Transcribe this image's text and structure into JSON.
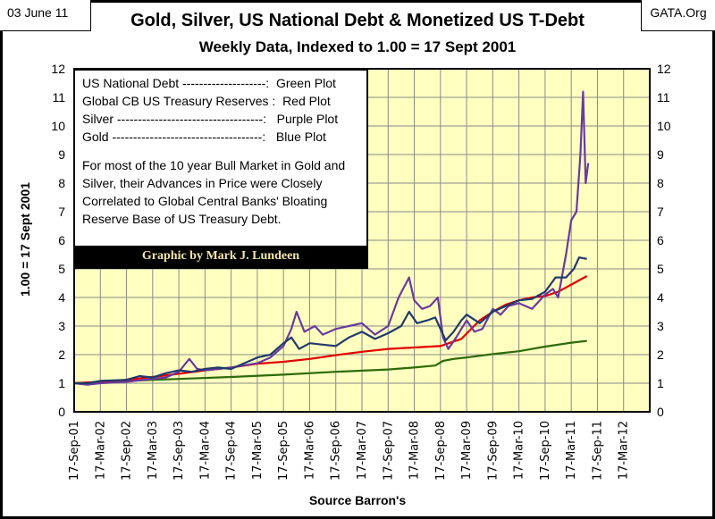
{
  "header": {
    "date": "03 June 11",
    "source_site": "GATA.Org",
    "title": "Gold, Silver, US National Debt & Monetized US T-Debt",
    "subtitle": "Weekly Data, Indexed to 1.00 = 17 Sept 2001"
  },
  "legend": {
    "lines": [
      "US National Debt --------------------:  Green Plot",
      "Global CB US Treasury Reserves :  Red Plot",
      "Silver -----------------------------------:   Purple Plot",
      "Gold ------------------------------------:   Blue Plot"
    ],
    "note": "For most of the 10 year Bull Market in Gold and Silver, their Advances in Price were Closely Correlated to Global Central Banks' Bloating Reserve Base of US Treasury Debt.",
    "credit": "Graphic by Mark J. Lundeen"
  },
  "chart_data": {
    "type": "line",
    "title": "Gold, Silver, US National Debt & Monetized US T-Debt",
    "xlabel": "Source Barron's",
    "ylabel": "1.00 = 17 Sept 2001",
    "ylim": [
      0,
      12
    ],
    "grid": true,
    "x_ticks": [
      "17-Sep-01",
      "17-Mar-02",
      "17-Sep-02",
      "17-Mar-03",
      "17-Sep-03",
      "17-Mar-04",
      "17-Sep-04",
      "17-Mar-05",
      "17-Sep-05",
      "17-Mar-06",
      "17-Sep-06",
      "17-Mar-07",
      "17-Sep-07",
      "17-Mar-08",
      "17-Sep-08",
      "17-Mar-09",
      "17-Sep-09",
      "17-Mar-10",
      "17-Sep-10",
      "17-Mar-11",
      "17-Sep-11",
      "17-Mar-12"
    ],
    "y_ticks": [
      0,
      1,
      2,
      3,
      4,
      5,
      6,
      7,
      8,
      9,
      10,
      11,
      12
    ],
    "x_unit": "half-years since 17-Sep-01",
    "series": [
      {
        "name": "US National Debt",
        "color": "#2d6a0a",
        "points": [
          [
            0,
            1
          ],
          [
            2,
            1.08
          ],
          [
            4,
            1.15
          ],
          [
            6,
            1.22
          ],
          [
            8,
            1.3
          ],
          [
            10,
            1.4
          ],
          [
            12,
            1.48
          ],
          [
            13,
            1.55
          ],
          [
            13.8,
            1.62
          ],
          [
            14.1,
            1.78
          ],
          [
            14.5,
            1.85
          ],
          [
            15,
            1.9
          ],
          [
            16,
            2.02
          ],
          [
            17,
            2.12
          ],
          [
            18,
            2.28
          ],
          [
            19,
            2.42
          ],
          [
            19.6,
            2.48
          ]
        ]
      },
      {
        "name": "Global CB US Treasury Reserves",
        "color": "#e00000",
        "points": [
          [
            0,
            1
          ],
          [
            1,
            1.05
          ],
          [
            2,
            1.12
          ],
          [
            3,
            1.22
          ],
          [
            4,
            1.33
          ],
          [
            5,
            1.45
          ],
          [
            6,
            1.55
          ],
          [
            7,
            1.68
          ],
          [
            8,
            1.75
          ],
          [
            9,
            1.85
          ],
          [
            10,
            1.98
          ],
          [
            11,
            2.1
          ],
          [
            12,
            2.2
          ],
          [
            13,
            2.25
          ],
          [
            14,
            2.3
          ],
          [
            14.8,
            2.55
          ],
          [
            15.5,
            3.2
          ],
          [
            16,
            3.5
          ],
          [
            16.5,
            3.75
          ],
          [
            17,
            3.9
          ],
          [
            17.5,
            4.0
          ],
          [
            18,
            4.05
          ],
          [
            18.5,
            4.2
          ],
          [
            19,
            4.45
          ],
          [
            19.6,
            4.75
          ]
        ]
      },
      {
        "name": "Silver",
        "color": "#6a3a9e",
        "points": [
          [
            0,
            1
          ],
          [
            0.5,
            0.95
          ],
          [
            1,
            1.0
          ],
          [
            2,
            1.05
          ],
          [
            3,
            1.15
          ],
          [
            3.5,
            1.2
          ],
          [
            4,
            1.4
          ],
          [
            4.4,
            1.85
          ],
          [
            4.7,
            1.5
          ],
          [
            5,
            1.45
          ],
          [
            6,
            1.55
          ],
          [
            7,
            1.7
          ],
          [
            7.5,
            1.9
          ],
          [
            8,
            2.3
          ],
          [
            8.3,
            2.9
          ],
          [
            8.5,
            3.5
          ],
          [
            8.8,
            2.8
          ],
          [
            9.2,
            3.0
          ],
          [
            9.5,
            2.7
          ],
          [
            10,
            2.9
          ],
          [
            10.5,
            3.0
          ],
          [
            11,
            3.1
          ],
          [
            11.5,
            2.7
          ],
          [
            12,
            3.0
          ],
          [
            12.4,
            4.0
          ],
          [
            12.8,
            4.7
          ],
          [
            13,
            3.9
          ],
          [
            13.3,
            3.6
          ],
          [
            13.6,
            3.7
          ],
          [
            13.9,
            4.0
          ],
          [
            14.1,
            2.6
          ],
          [
            14.3,
            2.2
          ],
          [
            14.6,
            2.6
          ],
          [
            15,
            3.2
          ],
          [
            15.3,
            2.8
          ],
          [
            15.6,
            2.9
          ],
          [
            16,
            3.6
          ],
          [
            16.3,
            3.4
          ],
          [
            16.6,
            3.7
          ],
          [
            17,
            3.8
          ],
          [
            17.5,
            3.6
          ],
          [
            18,
            4.1
          ],
          [
            18.3,
            4.3
          ],
          [
            18.5,
            4.0
          ],
          [
            18.8,
            5.5
          ],
          [
            19.0,
            6.7
          ],
          [
            19.2,
            7.0
          ],
          [
            19.35,
            9.0
          ],
          [
            19.45,
            11.2
          ],
          [
            19.55,
            8.0
          ],
          [
            19.65,
            8.7
          ]
        ]
      },
      {
        "name": "Gold",
        "color": "#1f3a6b",
        "points": [
          [
            0,
            1
          ],
          [
            0.5,
            1.0
          ],
          [
            1,
            1.08
          ],
          [
            1.5,
            1.1
          ],
          [
            2,
            1.12
          ],
          [
            2.5,
            1.25
          ],
          [
            3,
            1.2
          ],
          [
            3.5,
            1.35
          ],
          [
            4,
            1.45
          ],
          [
            4.5,
            1.4
          ],
          [
            5,
            1.5
          ],
          [
            5.5,
            1.55
          ],
          [
            6,
            1.5
          ],
          [
            6.5,
            1.7
          ],
          [
            7,
            1.9
          ],
          [
            7.5,
            2.0
          ],
          [
            8,
            2.4
          ],
          [
            8.3,
            2.6
          ],
          [
            8.6,
            2.2
          ],
          [
            9,
            2.4
          ],
          [
            9.5,
            2.35
          ],
          [
            10,
            2.3
          ],
          [
            10.5,
            2.6
          ],
          [
            11,
            2.8
          ],
          [
            11.5,
            2.55
          ],
          [
            12,
            2.75
          ],
          [
            12.5,
            3.0
          ],
          [
            12.8,
            3.5
          ],
          [
            13.1,
            3.1
          ],
          [
            13.5,
            3.2
          ],
          [
            13.8,
            3.3
          ],
          [
            14,
            2.9
          ],
          [
            14.2,
            2.5
          ],
          [
            14.5,
            2.8
          ],
          [
            14.8,
            3.2
          ],
          [
            15,
            3.4
          ],
          [
            15.5,
            3.1
          ],
          [
            16,
            3.5
          ],
          [
            16.5,
            3.7
          ],
          [
            17,
            3.9
          ],
          [
            17.5,
            3.95
          ],
          [
            18,
            4.2
          ],
          [
            18.4,
            4.7
          ],
          [
            18.8,
            4.7
          ],
          [
            19.1,
            5.0
          ],
          [
            19.3,
            5.4
          ],
          [
            19.6,
            5.35
          ]
        ]
      }
    ]
  }
}
